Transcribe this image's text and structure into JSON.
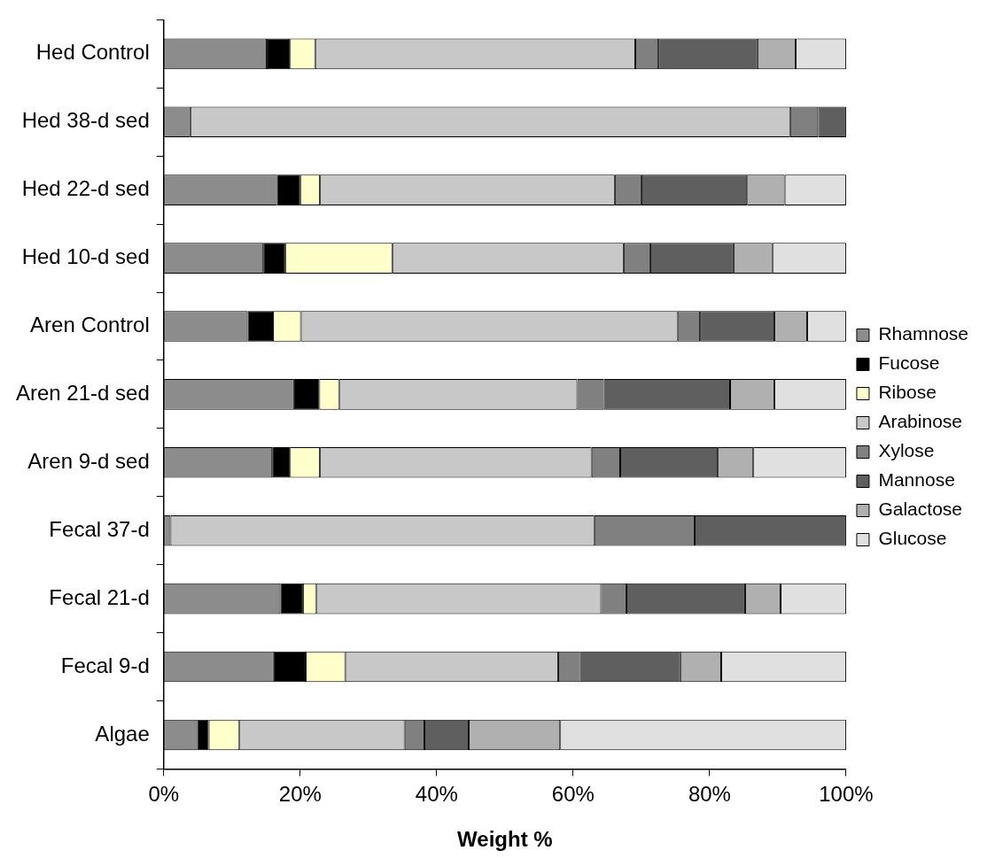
{
  "chart_data": {
    "type": "bar",
    "orientation": "horizontal",
    "stacked": true,
    "xlabel": "Weight %",
    "categories": [
      "Hed Control",
      "Hed 38-d sed",
      "Hed 22-d sed",
      "Hed 10-d sed",
      "Aren Control",
      "Aren 21-d sed",
      "Aren 9-d sed",
      "Fecal 37-d",
      "Fecal 21-d",
      "Fecal 9-d",
      "Algae"
    ],
    "series": [
      {
        "name": "Rhamnose",
        "color": "#8c8c8c",
        "values": [
          15.1,
          3.9,
          16.6,
          14.6,
          12.3,
          19.1,
          15.9,
          1.0,
          17.1,
          16.1,
          4.9
        ]
      },
      {
        "name": "Fucose",
        "color": "#000000",
        "values": [
          3.4,
          null,
          3.4,
          3.2,
          3.7,
          3.7,
          2.6,
          null,
          3.3,
          4.7,
          1.7
        ]
      },
      {
        "name": "Ribose",
        "color": "#ffffcc",
        "values": [
          3.7,
          null,
          2.9,
          15.7,
          4.1,
          2.9,
          4.4,
          null,
          2.0,
          5.8,
          4.5
        ]
      },
      {
        "name": "Arabinose",
        "color": "#c8c8c8",
        "values": [
          46.9,
          87.9,
          43.2,
          33.9,
          55.2,
          34.9,
          39.8,
          62.1,
          41.7,
          31.2,
          24.2
        ]
      },
      {
        "name": "Xylose",
        "color": "#808080",
        "values": [
          3.4,
          4.1,
          3.9,
          3.9,
          3.3,
          3.9,
          4.2,
          14.7,
          3.7,
          3.2,
          2.9
        ]
      },
      {
        "name": "Mannose",
        "color": "#5f5f5f",
        "values": [
          14.5,
          4.1,
          15.5,
          12.2,
          10.9,
          18.5,
          14.3,
          22.2,
          17.4,
          14.7,
          6.5
        ]
      },
      {
        "name": "Galactose",
        "color": "#b0b0b0",
        "values": [
          5.6,
          null,
          5.5,
          5.7,
          4.8,
          6.5,
          5.2,
          null,
          5.2,
          6.0,
          13.4
        ]
      },
      {
        "name": "Glucose",
        "color": "#e0e0e0",
        "values": [
          7.4,
          null,
          9.0,
          10.8,
          5.7,
          10.5,
          13.6,
          null,
          9.6,
          18.3,
          41.9
        ]
      }
    ],
    "xlim": [
      0,
      100
    ],
    "xticks": [
      {
        "value": 0,
        "label": "0%"
      },
      {
        "value": 20,
        "label": "20%"
      },
      {
        "value": 40,
        "label": "40%"
      },
      {
        "value": 60,
        "label": "60%"
      },
      {
        "value": 80,
        "label": "80%"
      },
      {
        "value": 100,
        "label": "100%"
      }
    ],
    "grid": false,
    "legend": "right"
  }
}
